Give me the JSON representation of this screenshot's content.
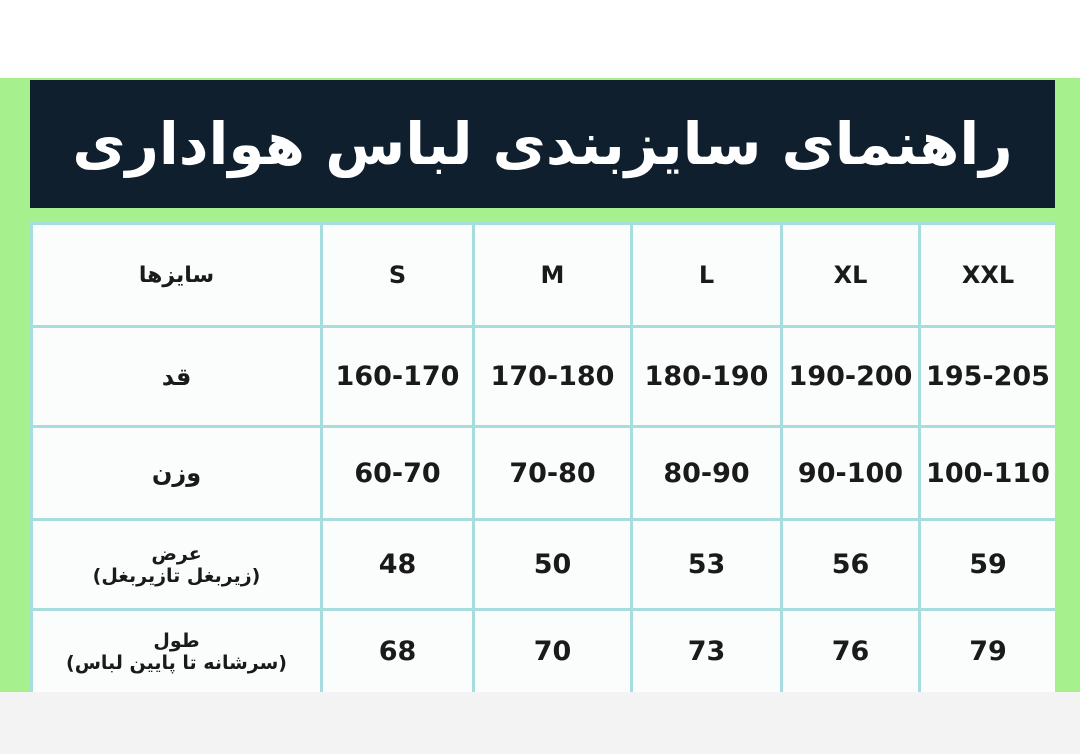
{
  "header": {
    "title": "راهنمای سایزبندی لباس هواداری"
  },
  "table": {
    "columns": [
      "سایزها",
      "S",
      "M",
      "L",
      "XL",
      "XXL"
    ],
    "rows": [
      {
        "label": [
          "قد"
        ],
        "cells": [
          "160-170",
          "170-180",
          "180-190",
          "190-200",
          "195-205"
        ]
      },
      {
        "label": [
          "وزن"
        ],
        "cells": [
          "60-70",
          "70-80",
          "80-90",
          "90-100",
          "100-110"
        ]
      },
      {
        "label": [
          "عرض",
          "(زیربغل تازیربغل)"
        ],
        "cells": [
          "48",
          "50",
          "53",
          "56",
          "59"
        ]
      },
      {
        "label": [
          "طول",
          "(سرشانه تا پایین لباس)"
        ],
        "cells": [
          "68",
          "70",
          "73",
          "76",
          "79"
        ]
      }
    ]
  }
}
